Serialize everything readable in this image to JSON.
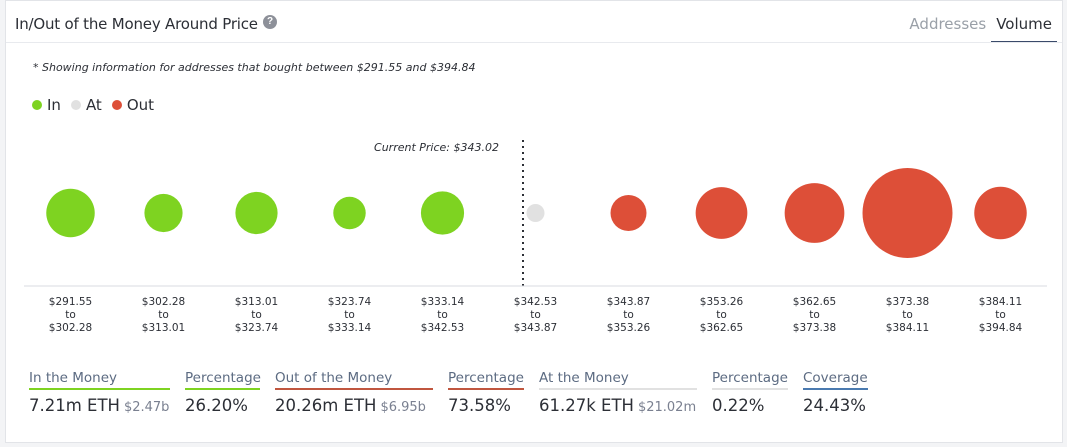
{
  "title": "In/Out of the Money Around Price",
  "help_icon": "question-circle-icon",
  "tabs": [
    {
      "label": "Addresses",
      "active": false
    },
    {
      "label": "Volume",
      "active": true
    }
  ],
  "note": "* Showing information for addresses that bought between $291.55 and $394.84",
  "legend": [
    {
      "label": "In",
      "color": "#7ed321"
    },
    {
      "label": "At",
      "color": "#e1e1e1"
    },
    {
      "label": "Out",
      "color": "#dd4f38"
    }
  ],
  "current_price_label": "Current Price: $343.02",
  "chart_data": {
    "type": "bubble",
    "current_price": 343.02,
    "categories": [
      {
        "from": "$291.55",
        "to": "$302.28",
        "status": "In",
        "relative_size": 0.29
      },
      {
        "from": "$302.28",
        "to": "$313.01",
        "status": "In",
        "relative_size": 0.18
      },
      {
        "from": "$313.01",
        "to": "$323.74",
        "status": "In",
        "relative_size": 0.22
      },
      {
        "from": "$323.74",
        "to": "$333.14",
        "status": "In",
        "relative_size": 0.13
      },
      {
        "from": "$333.14",
        "to": "$342.53",
        "status": "In",
        "relative_size": 0.23
      },
      {
        "from": "$342.53",
        "to": "$343.87",
        "status": "At",
        "relative_size": 0.04
      },
      {
        "from": "$343.87",
        "to": "$353.26",
        "status": "Out",
        "relative_size": 0.16
      },
      {
        "from": "$353.26",
        "to": "$362.65",
        "status": "Out",
        "relative_size": 0.33
      },
      {
        "from": "$362.65",
        "to": "$373.38",
        "status": "Out",
        "relative_size": 0.44
      },
      {
        "from": "$373.38",
        "to": "$384.11",
        "status": "Out",
        "relative_size": 1.0
      },
      {
        "from": "$384.11",
        "to": "$394.84",
        "status": "Out",
        "relative_size": 0.34
      }
    ],
    "to_word": "to",
    "colors": {
      "In": "#7ed321",
      "At": "#e1e1e1",
      "Out": "#dd4f38"
    }
  },
  "summary": [
    {
      "label": "In the Money",
      "value": "7.21m ETH",
      "sub": "$2.47b",
      "underline": "#7ed321"
    },
    {
      "label": "Percentage",
      "value": "26.20%",
      "sub": "",
      "underline": "#7ed321"
    },
    {
      "label": "Out of the Money",
      "value": "20.26m ETH",
      "sub": "$6.95b",
      "underline": "#c0563f"
    },
    {
      "label": "Percentage",
      "value": "73.58%",
      "sub": "",
      "underline": "#c0563f"
    },
    {
      "label": "At the Money",
      "value": "61.27k ETH",
      "sub": "$21.02m",
      "underline": "#e1e1e1"
    },
    {
      "label": "Percentage",
      "value": "0.22%",
      "sub": "",
      "underline": "#e1e1e1"
    },
    {
      "label": "Coverage",
      "value": "24.43%",
      "sub": "",
      "underline": "#4a7ab0"
    }
  ]
}
